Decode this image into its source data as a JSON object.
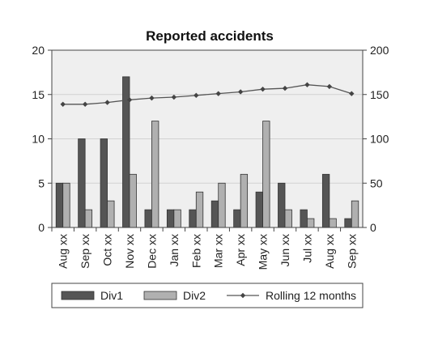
{
  "chart_data": {
    "type": "bar",
    "title": "Reported accidents",
    "categories": [
      "Aug xx",
      "Sep xx",
      "Oct xx",
      "Nov xx",
      "Dec xx",
      "Jan xx",
      "Feb xx",
      "Mar xx",
      "Apr xx",
      "May xx",
      "Jun xx",
      "Jul xx",
      "Aug xx",
      "Sep xx"
    ],
    "series": [
      {
        "name": "Div1",
        "type": "bar",
        "axis": "left",
        "color": "#555555",
        "values": [
          5,
          10,
          10,
          17,
          2,
          2,
          2,
          3,
          2,
          4,
          5,
          2,
          6,
          1
        ]
      },
      {
        "name": "Div2",
        "type": "bar",
        "axis": "left",
        "color": "#b0b0b0",
        "values": [
          5,
          2,
          3,
          6,
          12,
          2,
          4,
          5,
          6,
          12,
          2,
          1,
          1,
          3
        ]
      },
      {
        "name": "Rolling 12 months",
        "type": "line",
        "axis": "right",
        "color": "#555555",
        "values": [
          139,
          139,
          141,
          144,
          146,
          147,
          149,
          151,
          153,
          156,
          157,
          161,
          159,
          151
        ]
      }
    ],
    "ylim_left": [
      0,
      20
    ],
    "yticks_left": [
      0,
      5,
      10,
      15,
      20
    ],
    "ylim_right": [
      0,
      200
    ],
    "yticks_right": [
      0,
      50,
      100,
      150,
      200
    ],
    "grid": true,
    "legend_position": "bottom"
  }
}
